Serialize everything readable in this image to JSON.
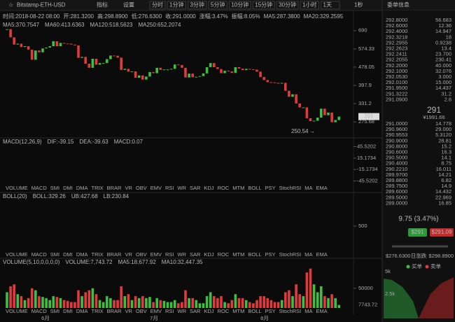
{
  "toolbar": {
    "symbol": "Bitstamp-ETH-USD",
    "indicators": "指标",
    "settings": "设置",
    "periods": [
      "分时",
      "1分钟",
      "3分钟",
      "5分钟",
      "10分钟",
      "15分钟",
      "30分钟",
      "1小时",
      "1天"
    ],
    "speed": "1秒",
    "panel_title": "委单信息"
  },
  "info_bar": [
    "时间:2018-08-22 08:00",
    "开:281.3200",
    "高:298.8900",
    "低:276.6300",
    "收:291.0000",
    "涨幅:3.47%",
    "振幅:8.05%",
    "MA5:287.3800",
    "MA20:329.2595"
  ],
  "price_chart": {
    "type": "candlestick",
    "legend": [
      {
        "text": "MA5:370.7547",
        "color": "#e6e6e6"
      },
      {
        "text": "MA60:413.6363",
        "color": "#3cc8e6"
      },
      {
        "text": "MA120:518.5623",
        "color": "#e6d23c"
      },
      {
        "text": "MA250:652.2074",
        "color": "#e050e0"
      }
    ],
    "log_scale": true,
    "ylim": [
      245,
      760
    ],
    "yticks": [
      690,
      574.33,
      478.05,
      397.9,
      331.2,
      275.68
    ],
    "up_color": "#3fbf3f",
    "down_color": "#e23a3a",
    "closes": [
      700,
      645,
      600,
      605,
      585,
      590,
      570,
      515,
      565,
      555,
      577,
      582,
      590,
      620,
      590,
      610,
      606,
      605,
      600,
      595,
      525,
      530,
      495,
      475,
      520,
      490,
      498,
      498,
      518,
      537,
      536,
      526,
      465,
      470,
      457,
      458,
      430,
      440,
      422,
      435,
      455,
      450,
      475,
      465,
      467,
      467,
      470,
      491,
      488,
      475,
      431,
      448,
      432,
      434,
      437,
      449,
      478,
      498,
      478,
      469,
      450,
      461,
      458,
      451,
      478,
      471,
      464,
      470,
      468,
      466,
      457,
      433,
      420,
      411,
      410,
      408,
      407,
      408,
      377,
      355,
      364,
      332,
      319,
      319,
      286,
      278,
      279,
      288,
      315,
      295,
      303,
      275,
      281,
      291
    ],
    "last_price": 291,
    "low": 250.54,
    "x_labels": [
      "6月",
      "7月",
      "8月"
    ]
  },
  "macd": {
    "legend": [
      "MACD(12,26,9)",
      "DIF:-39.15",
      "DEA:-39.63",
      "MACD:0.07"
    ],
    "ylim": [
      -52,
      52
    ],
    "yticks": [
      45.5202,
      15.1734,
      -15.1734,
      -45.5202
    ]
  },
  "indicator_tabs": [
    "VOLUME",
    "MACD",
    "SMI",
    "DMI",
    "DMA",
    "TRIX",
    "BRAR",
    "VR",
    "OBV",
    "EMV",
    "RSI",
    "WR",
    "SAR",
    "KDJ",
    "ROC",
    "MTM",
    "BOLL",
    "PSY",
    "StochRSI",
    "MA",
    "EMA"
  ],
  "boll": {
    "legend": [
      "BOLL(20)",
      "BOLL:329.26",
      "UB:427.68",
      "LB:230.84"
    ],
    "ylim": [
      200,
      800
    ],
    "yticks": [
      500
    ]
  },
  "volume": {
    "legend": [
      "VOLUME(5,10,0,0,0,0)",
      "VOLUME:7,743.72",
      "MA5:18,677.92",
      "MA10:32,447.35"
    ],
    "ylim": [
      0,
      110000
    ],
    "yticks": [
      50000
    ],
    "last": 7743.72,
    "values": [
      40000,
      55000,
      60000,
      35000,
      30000,
      20000,
      25000,
      50000,
      45000,
      30000,
      28000,
      25000,
      20000,
      30000,
      28000,
      25000,
      20000,
      18000,
      15000,
      15000,
      45000,
      30000,
      40000,
      45000,
      50000,
      35000,
      20000,
      15000,
      30000,
      25000,
      20000,
      20000,
      55000,
      30000,
      35000,
      20000,
      30000,
      25000,
      30000,
      25000,
      28000,
      15000,
      25000,
      20000,
      18000,
      15000,
      15000,
      20000,
      12000,
      15000,
      45000,
      25000,
      25000,
      20000,
      12000,
      12000,
      30000,
      40000,
      30000,
      25000,
      30000,
      15000,
      12000,
      20000,
      35000,
      25000,
      25000,
      20000,
      15000,
      12000,
      20000,
      30000,
      30000,
      25000,
      20000,
      15000,
      15000,
      20000,
      40000,
      45000,
      30000,
      60000,
      35000,
      30000,
      90000,
      100000,
      60000,
      40000,
      55000,
      30000,
      25000,
      35000,
      25000,
      7743.72
    ]
  },
  "order_book": {
    "asks": [
      [
        "292.8000",
        "56.683"
      ],
      [
        "292.6000",
        "12.36"
      ],
      [
        "292.4000",
        "14.947"
      ],
      [
        "292.3218",
        "18"
      ],
      [
        "292.2955",
        "0.9238"
      ],
      [
        "292.2623",
        "13.4"
      ],
      [
        "292.2411",
        "23.700"
      ],
      [
        "292.2055",
        "230.41"
      ],
      [
        "292.2000",
        "40.000"
      ],
      [
        "292.1000",
        "32.076"
      ],
      [
        "292.0530",
        "3.000"
      ],
      [
        "292.0100",
        "15.000"
      ],
      [
        "291.9500",
        "14.437"
      ],
      [
        "291.3222",
        "31.2"
      ],
      [
        "291.0900",
        "2.6"
      ]
    ],
    "last_price": "291",
    "cny": "¥1991.66",
    "bids": [
      [
        "291.0000",
        "14.778"
      ],
      [
        "290.9600",
        "29.000"
      ],
      [
        "290.9553",
        "5.3120"
      ],
      [
        "290.9000",
        "28.81"
      ],
      [
        "290.8000",
        "15.2"
      ],
      [
        "290.6000",
        "16.3"
      ],
      [
        "290.5000",
        "14.1"
      ],
      [
        "290.4000",
        "8.75"
      ],
      [
        "290.2210",
        "16.011"
      ],
      [
        "289.9700",
        "14.21"
      ],
      [
        "289.8800",
        "6.82"
      ],
      [
        "289.7500",
        "14.9"
      ],
      [
        "289.6000",
        "14.432"
      ],
      [
        "289.5000",
        "22.969"
      ],
      [
        "289.0000",
        "16.85"
      ]
    ],
    "change": "9.75 (3.47%)",
    "buy_button": "$291",
    "sell_button": "$291.09",
    "day_low": "$276.6300",
    "day_range_label": "日涨跌",
    "day_high": "$298.8900",
    "legend": [
      "买单",
      "卖单"
    ],
    "depth_ticks": [
      "5k",
      "2.5k"
    ]
  }
}
